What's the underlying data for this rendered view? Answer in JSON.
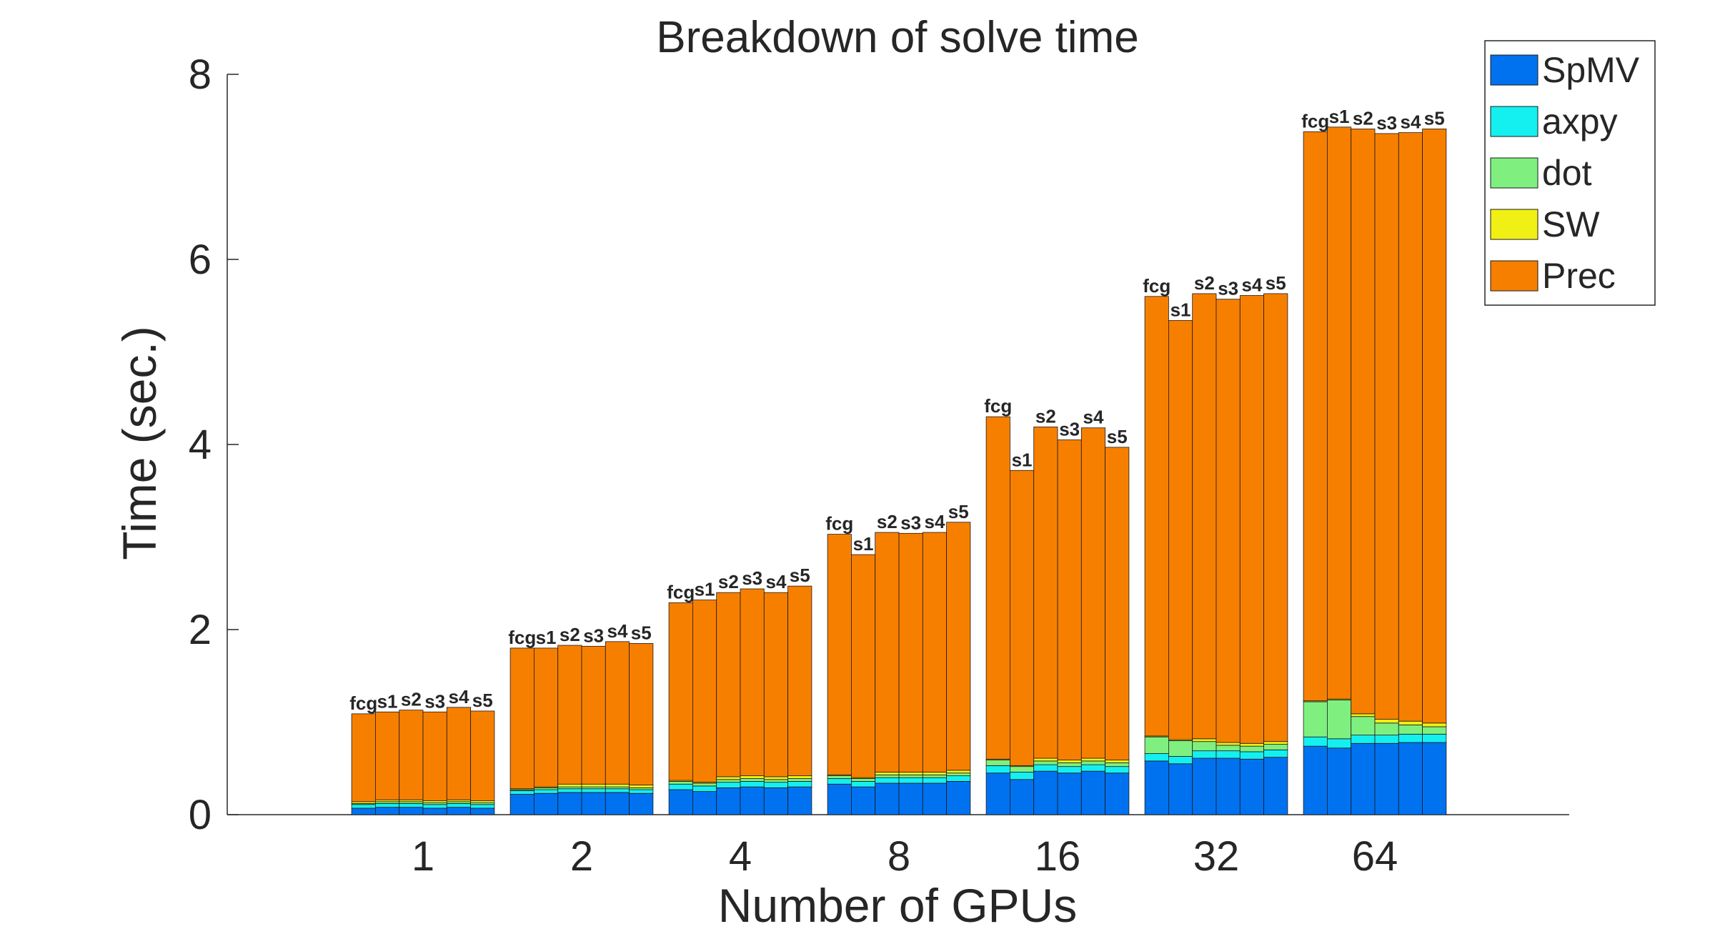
{
  "chart_data": {
    "type": "bar",
    "stacked": true,
    "title": "Breakdown of solve time",
    "xlabel": "Number of GPUs",
    "ylabel": "Time (sec.)",
    "ylim": [
      0,
      8
    ],
    "yticks": [
      0,
      2,
      4,
      6,
      8
    ],
    "categories": [
      "1",
      "2",
      "4",
      "8",
      "16",
      "32",
      "64"
    ],
    "variants": [
      "fcg",
      "s1",
      "s2",
      "s3",
      "s4",
      "s5"
    ],
    "legend_position": "top-right",
    "series": [
      {
        "name": "SpMV",
        "color": "#0072f0",
        "values": [
          [
            0.07,
            0.08,
            0.08,
            0.07,
            0.08,
            0.07
          ],
          [
            0.22,
            0.23,
            0.24,
            0.24,
            0.24,
            0.23
          ],
          [
            0.27,
            0.25,
            0.29,
            0.3,
            0.29,
            0.3
          ],
          [
            0.33,
            0.3,
            0.34,
            0.34,
            0.34,
            0.36
          ],
          [
            0.45,
            0.38,
            0.47,
            0.45,
            0.47,
            0.45
          ],
          [
            0.58,
            0.55,
            0.61,
            0.61,
            0.6,
            0.62
          ],
          [
            0.74,
            0.72,
            0.77,
            0.77,
            0.78,
            0.78
          ]
        ]
      },
      {
        "name": "axpy",
        "color": "#14f0f0",
        "values": [
          [
            0.04,
            0.04,
            0.04,
            0.04,
            0.04,
            0.04
          ],
          [
            0.04,
            0.04,
            0.04,
            0.04,
            0.04,
            0.04
          ],
          [
            0.06,
            0.06,
            0.06,
            0.06,
            0.06,
            0.06
          ],
          [
            0.06,
            0.06,
            0.06,
            0.06,
            0.06,
            0.06
          ],
          [
            0.08,
            0.08,
            0.07,
            0.07,
            0.07,
            0.07
          ],
          [
            0.08,
            0.08,
            0.08,
            0.08,
            0.08,
            0.08
          ],
          [
            0.1,
            0.1,
            0.09,
            0.09,
            0.09,
            0.09
          ]
        ]
      },
      {
        "name": "dot",
        "color": "#7ff07f",
        "values": [
          [
            0.01,
            0.02,
            0.02,
            0.02,
            0.02,
            0.02
          ],
          [
            0.01,
            0.02,
            0.02,
            0.02,
            0.02,
            0.02
          ],
          [
            0.03,
            0.03,
            0.03,
            0.03,
            0.03,
            0.03
          ],
          [
            0.03,
            0.03,
            0.03,
            0.03,
            0.03,
            0.03
          ],
          [
            0.06,
            0.06,
            0.04,
            0.04,
            0.04,
            0.04
          ],
          [
            0.18,
            0.17,
            0.1,
            0.06,
            0.06,
            0.06
          ],
          [
            0.38,
            0.42,
            0.2,
            0.13,
            0.1,
            0.08
          ]
        ]
      },
      {
        "name": "SW",
        "color": "#f0f014",
        "values": [
          [
            0.02,
            0.02,
            0.02,
            0.02,
            0.02,
            0.02
          ],
          [
            0.01,
            0.01,
            0.03,
            0.03,
            0.03,
            0.03
          ],
          [
            0.01,
            0.01,
            0.03,
            0.03,
            0.03,
            0.03
          ],
          [
            0.01,
            0.01,
            0.03,
            0.03,
            0.03,
            0.03
          ],
          [
            0.01,
            0.01,
            0.03,
            0.03,
            0.03,
            0.03
          ],
          [
            0.01,
            0.01,
            0.03,
            0.03,
            0.03,
            0.03
          ],
          [
            0.01,
            0.01,
            0.03,
            0.04,
            0.04,
            0.04
          ]
        ]
      },
      {
        "name": "Prec",
        "color": "#f77f00",
        "values": [
          [
            0.95,
            0.95,
            0.97,
            0.96,
            1.0,
            0.97
          ],
          [
            1.52,
            1.5,
            1.5,
            1.49,
            1.54,
            1.53
          ],
          [
            1.92,
            1.97,
            1.99,
            2.02,
            1.99,
            2.05
          ],
          [
            2.6,
            2.41,
            2.59,
            2.58,
            2.59,
            2.68
          ],
          [
            3.7,
            3.19,
            3.58,
            3.46,
            3.57,
            3.38
          ],
          [
            4.75,
            4.53,
            4.81,
            4.79,
            4.84,
            4.84
          ],
          [
            6.15,
            6.18,
            6.32,
            6.33,
            6.36,
            6.42
          ]
        ]
      }
    ]
  }
}
